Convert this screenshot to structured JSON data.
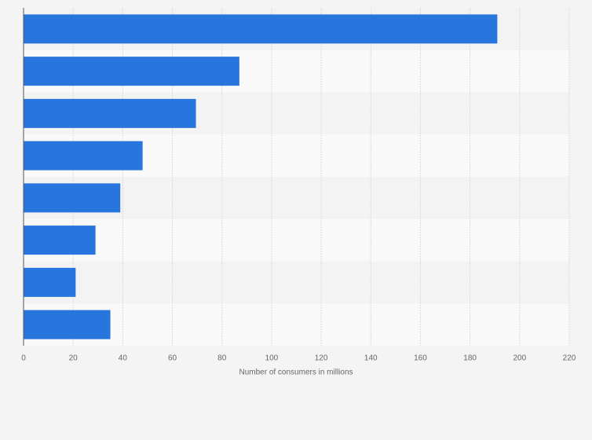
{
  "chart_data": {
    "type": "hbar",
    "categories": [
      null,
      null,
      null,
      null,
      null,
      null,
      null,
      null
    ],
    "values": [
      191,
      87,
      69.5,
      48,
      39,
      29,
      21,
      35
    ],
    "color": "#2876dd",
    "xlim": [
      0,
      220
    ],
    "xticks": [
      0,
      20,
      40,
      60,
      80,
      100,
      120,
      140,
      160,
      180,
      200,
      220
    ],
    "x_label": "Number of consumers in millions",
    "grid": true
  }
}
